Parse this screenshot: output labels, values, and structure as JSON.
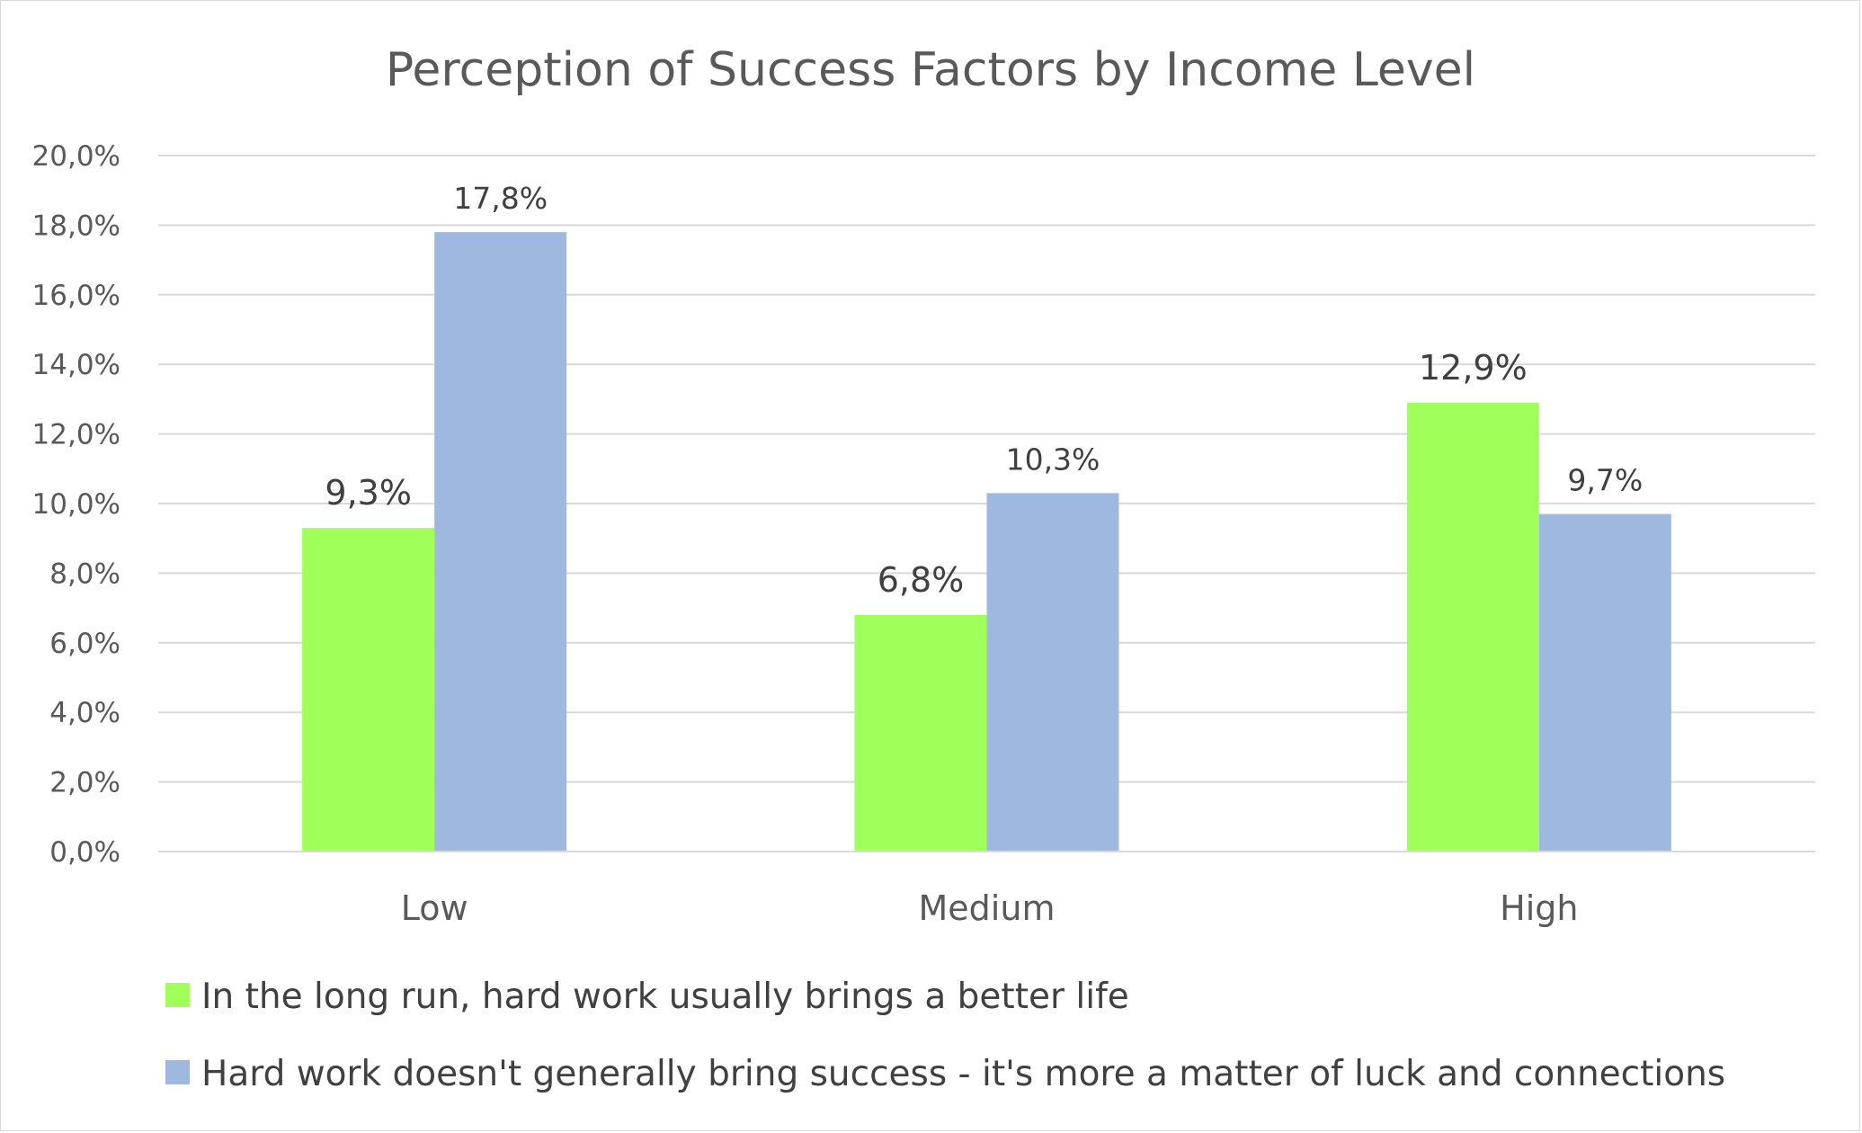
{
  "chart_data": {
    "type": "bar",
    "title": "Perception of Success Factors by Income Level",
    "categories": [
      "Low",
      "Medium",
      "High"
    ],
    "series": [
      {
        "name": "In the long run, hard work usually brings a better life",
        "values": [
          9.3,
          6.8,
          12.9
        ],
        "labels": [
          "9,3%",
          "6,8%",
          "12,9%"
        ],
        "color": "#a0ff58"
      },
      {
        "name": "Hard work doesn't generally bring success - it's more a matter of luck and connections",
        "values": [
          17.8,
          10.3,
          9.7
        ],
        "labels": [
          "17,8%",
          "10,3%",
          "9,7%"
        ],
        "color": "#9fb8e0"
      }
    ],
    "y_ticks": [
      "0,0%",
      "2,0%",
      "4,0%",
      "6,0%",
      "8,0%",
      "10,0%",
      "12,0%",
      "14,0%",
      "16,0%",
      "18,0%",
      "20,0%"
    ],
    "ylim": [
      0,
      20
    ],
    "grid": true,
    "legend_position": "bottom-left"
  }
}
